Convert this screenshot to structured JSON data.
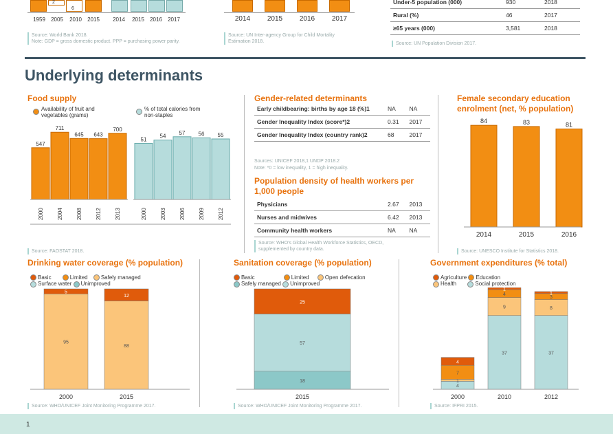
{
  "top": {
    "gdp_ticks": [
      "1959",
      "2005",
      "2010",
      "2015",
      "2014",
      "2015",
      "2016",
      "2017"
    ],
    "gdp_labels": [
      "2",
      "6"
    ],
    "gdp_source": "Source: World Bank 2018.",
    "gdp_note": "Note: GDP = gross domestic product. PPP = purchasing power parity.",
    "mort_ticks": [
      "2014",
      "2015",
      "2016",
      "2017"
    ],
    "mort_source": "Source: UN Inter-agency Group for Child Mortality Estimation 2018.",
    "pop_rows": [
      {
        "label": "Under-5 population (000)",
        "value": "930",
        "year": "2018"
      },
      {
        "label": "Rural (%)",
        "value": "46",
        "year": "2017"
      },
      {
        "label": "≥65 years (000)",
        "value": "3,581",
        "year": "2018"
      }
    ],
    "pop_source": "Source: UN Population Division 2017."
  },
  "section_title": "Underlying determinants",
  "food": {
    "title": "Food supply",
    "legend1": "Availability of fruit and vegetables (grams)",
    "legend2": "% of total calories from non-staples",
    "source": "Source: FAOSTAT 2018."
  },
  "gender": {
    "title": "Gender-related determinants",
    "rows": [
      {
        "label": "Early childbearing: births by age 18 (%)1",
        "value": "NA",
        "year": "NA"
      },
      {
        "label": "Gender Inequality Index (score*)2",
        "value": "0.31",
        "year": "2017"
      },
      {
        "label": "Gender Inequality Index (country rank)2",
        "value": "68",
        "year": "2017"
      }
    ],
    "sources": "Sources: UNICEF 2018,1 UNDP 2018.2",
    "note": "Note: *0 = low inequality, 1 = high inequality."
  },
  "workers": {
    "title": "Population density of health workers per 1,000 people",
    "rows": [
      {
        "label": "Physicians",
        "value": "2.67",
        "year": "2013"
      },
      {
        "label": "Nurses and midwives",
        "value": "6.42",
        "year": "2013"
      },
      {
        "label": "Community health workers",
        "value": "NA",
        "year": "NA"
      }
    ],
    "source": "Source: WHO's Global Health Workforce Statistics, OECD, supplemented by country data."
  },
  "education": {
    "title": "Female secondary education enrolment (net, % population)",
    "source": "Source: UNESCO Institute for Statistics 2018."
  },
  "water": {
    "title": "Drinking water coverage (% population)",
    "legend": [
      "Basic",
      "Limited",
      "Safely managed",
      "Surface water",
      "Unimproved"
    ],
    "source": "Source: WHO/UNICEF Joint Monitoring Programme 2017."
  },
  "sanitation": {
    "title": "Sanitation coverage (% population)",
    "legend": [
      "Basic",
      "Limited",
      "Open defecation",
      "Safely managed",
      "Unimproved"
    ],
    "source": "Source: WHO/UNICEF Joint Monitoring Programme 2017."
  },
  "gov": {
    "title": "Government expenditures (% total)",
    "legend": [
      "Agriculture",
      "Education",
      "Health",
      "Social protection"
    ],
    "source": "Source: IFPRI 2015."
  },
  "page_number": "1",
  "chart_data": [
    {
      "type": "bar",
      "title": "Food supply",
      "categories": [
        "2000",
        "2004",
        "2008",
        "2012",
        "2013"
      ],
      "series": [
        {
          "name": "Availability of fruit and vegetables (grams)",
          "values": [
            547,
            711,
            645,
            643,
            700
          ]
        }
      ]
    },
    {
      "type": "bar",
      "categories": [
        "2000",
        "2003",
        "2006",
        "2009",
        "2012"
      ],
      "series": [
        {
          "name": "% of total calories from non-staples",
          "values": [
            51,
            54,
            57,
            56,
            55
          ]
        }
      ]
    },
    {
      "type": "bar",
      "title": "Female secondary education enrolment (net, % population)",
      "categories": [
        "2014",
        "2015",
        "2016"
      ],
      "values": [
        84,
        83,
        81
      ]
    },
    {
      "type": "bar",
      "title": "Drinking water coverage (% population)",
      "categories": [
        "2000",
        "2015"
      ],
      "series": [
        {
          "name": "Limited",
          "values": [
            95,
            88
          ]
        },
        {
          "name": "Basic",
          "values": [
            5,
            12
          ]
        }
      ]
    },
    {
      "type": "bar",
      "title": "Sanitation coverage (% population)",
      "categories": [
        "2015"
      ],
      "series": [
        {
          "name": "Safely managed",
          "values": [
            18
          ]
        },
        {
          "name": "Unimproved",
          "values": [
            57
          ]
        },
        {
          "name": "Basic",
          "values": [
            25
          ]
        }
      ]
    },
    {
      "type": "bar",
      "title": "Government expenditures (% total)",
      "categories": [
        "2000",
        "2010",
        "2012"
      ],
      "series": [
        {
          "name": "Social protection",
          "values": [
            4,
            37,
            37
          ]
        },
        {
          "name": "Health",
          "values": [
            1,
            9,
            8
          ]
        },
        {
          "name": "Education",
          "values": [
            7,
            4,
            3
          ]
        },
        {
          "name": "Agriculture",
          "values": [
            4,
            1,
            1
          ]
        }
      ]
    }
  ]
}
